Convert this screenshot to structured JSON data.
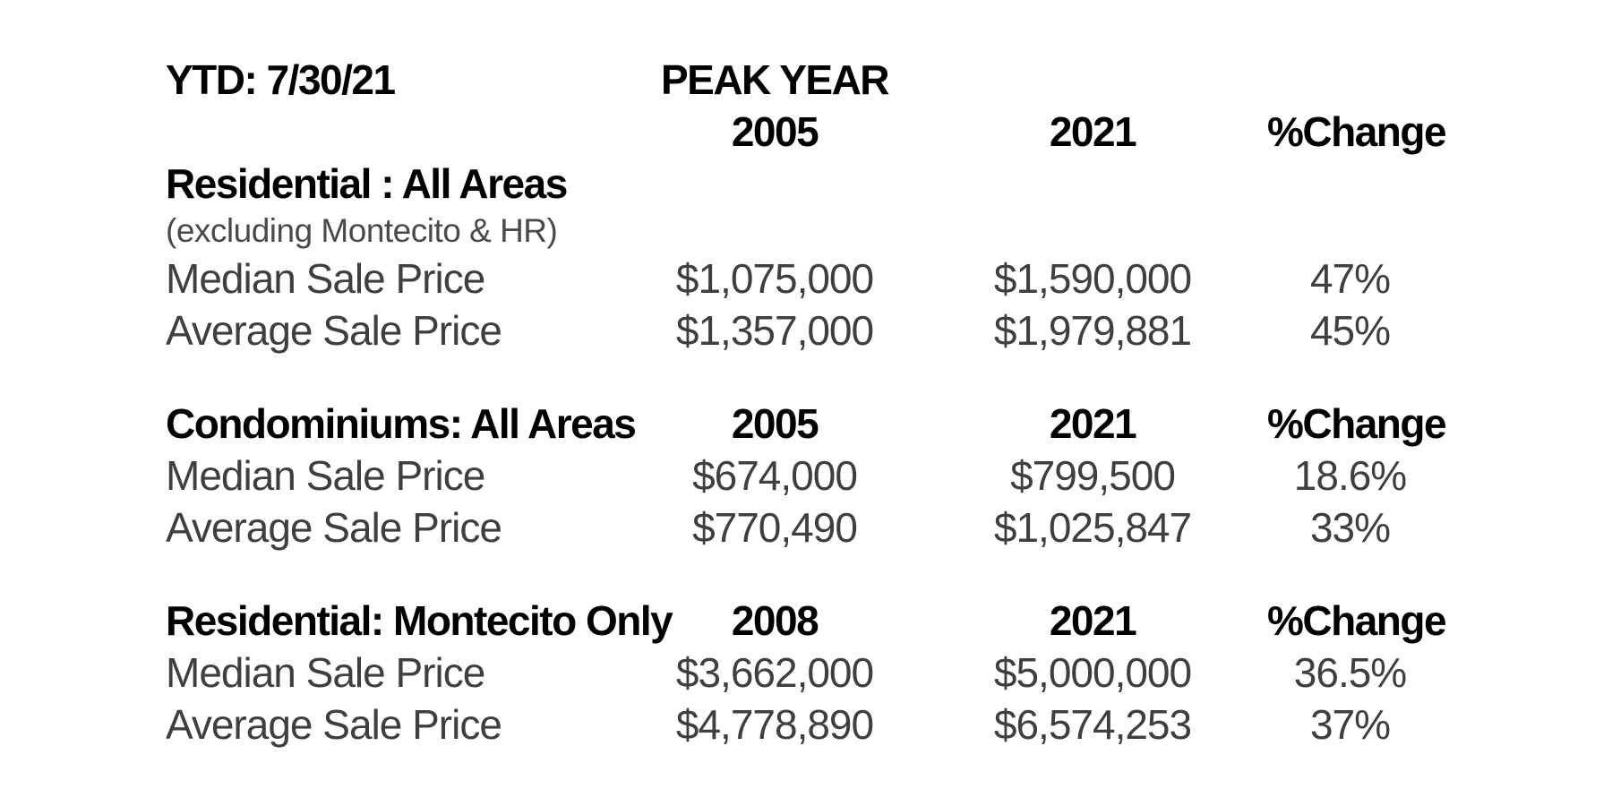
{
  "page": {
    "background_color": "#ffffff",
    "body_text_color": "#3f3f3f",
    "heading_text_color": "#000000"
  },
  "header": {
    "ytd_label": "YTD: 7/30/21",
    "peak_year_label": "PEAK YEAR",
    "year_columns": {
      "peak": "2005",
      "current": "2021",
      "change": "%Change"
    }
  },
  "sections": [
    {
      "title": "Residential : All Areas",
      "subtitle": "(excluding Montecito & HR)",
      "rows": [
        {
          "label": "Median Sale Price",
          "peak_value": "$1,075,000",
          "current_value": "$1,590,000",
          "percent_change": "47%"
        },
        {
          "label": "Average Sale Price",
          "peak_value": "$1,357,000",
          "current_value": "$1,979,881",
          "percent_change": "45%"
        }
      ]
    },
    {
      "title": "Condominiums: All Areas",
      "peak_year": "2005",
      "current_year": "2021",
      "change_label": "%Change",
      "rows": [
        {
          "label": "Median Sale Price",
          "peak_value": "$674,000",
          "current_value": "$799,500",
          "percent_change": "18.6%"
        },
        {
          "label": "Average Sale Price",
          "peak_value": "$770,490",
          "current_value": "$1,025,847",
          "percent_change": "33%"
        }
      ]
    },
    {
      "title": "Residential: Montecito Only",
      "peak_year": "2008",
      "current_year": "2021",
      "change_label": "%Change",
      "rows": [
        {
          "label": "Median Sale Price",
          "peak_value": "$3,662,000",
          "current_value": "$5,000,000",
          "percent_change": "36.5%"
        },
        {
          "label": "Average Sale Price",
          "peak_value": "$4,778,890",
          "current_value": "$6,574,253",
          "percent_change": "37%"
        }
      ]
    }
  ]
}
